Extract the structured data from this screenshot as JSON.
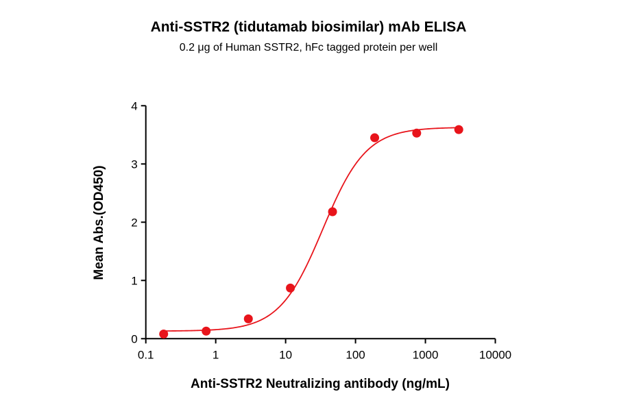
{
  "chart_data": {
    "type": "scatter",
    "title": "Anti-SSTR2 (tidutamab biosimilar) mAb ELISA",
    "subtitle": "0.2 μg of Human SSTR2, hFc tagged protein per well",
    "xlabel": "Anti-SSTR2 Neutralizing antibody (ng/mL)",
    "ylabel": "Mean Abs.(OD450)",
    "xscale": "log",
    "xlim": [
      0.1,
      10000
    ],
    "ylim": [
      0,
      4
    ],
    "xticks": [
      "0.1",
      "1",
      "10",
      "100",
      "1000",
      "10000"
    ],
    "yticks": [
      "0",
      "1",
      "2",
      "3",
      "4"
    ],
    "grid": false,
    "color": "#e8141b",
    "series": [
      {
        "x": [
          0.18,
          0.73,
          2.93,
          11.7,
          46.9,
          188,
          750,
          3000
        ],
        "y": [
          0.08,
          0.13,
          0.34,
          0.87,
          2.18,
          3.45,
          3.53,
          3.59
        ]
      }
    ],
    "fit": {
      "model": "4PL",
      "bottom": 0.13,
      "top": 3.63,
      "ec50": 34,
      "hill": 1.4
    }
  }
}
